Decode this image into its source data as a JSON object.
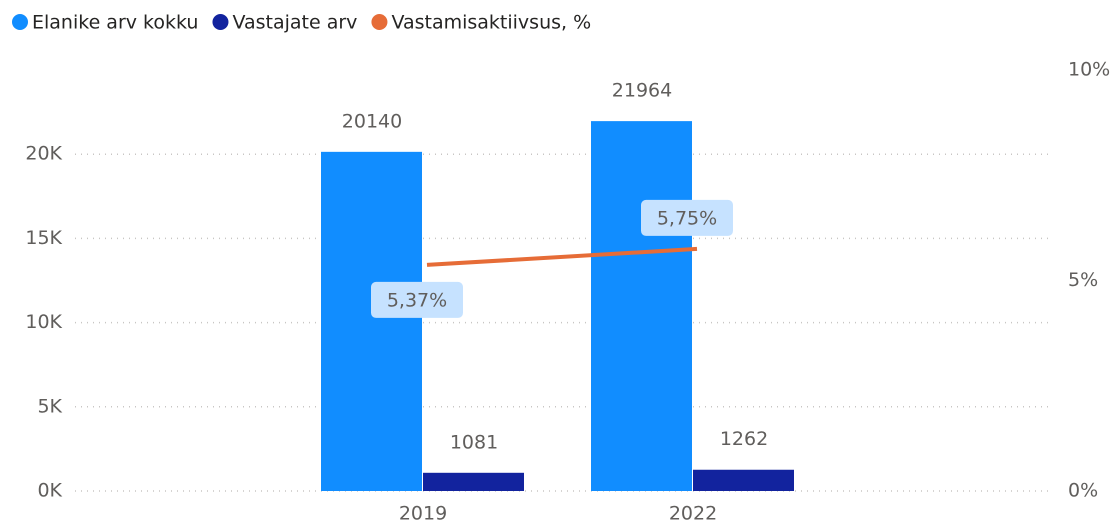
{
  "chart_data": {
    "type": "combo",
    "categories": [
      "2019",
      "2022"
    ],
    "series": [
      {
        "name": "Elanike arv kokku",
        "color": "#118dff",
        "type": "bar",
        "values": [
          20140,
          21964
        ]
      },
      {
        "name": "Vastajate arv",
        "color": "#12239e",
        "type": "bar",
        "values": [
          1081,
          1262
        ]
      },
      {
        "name": "Vastamisaktiivsus, %",
        "color": "#e66c37",
        "type": "line",
        "axis": "y2",
        "values": [
          5.37,
          5.75
        ],
        "value_labels": [
          "5,37%",
          "5,75%"
        ]
      }
    ],
    "ylim": [
      0,
      25000
    ],
    "yticks": [
      {
        "value": 0,
        "label": "0K"
      },
      {
        "value": 5000,
        "label": "5K"
      },
      {
        "value": 10000,
        "label": "10K"
      },
      {
        "value": 15000,
        "label": "15K"
      },
      {
        "value": 20000,
        "label": "20K"
      }
    ],
    "y2lim": [
      0,
      10
    ],
    "y2ticks": [
      {
        "value": 0,
        "label": "0%"
      },
      {
        "value": 5,
        "label": "5%"
      },
      {
        "value": 10,
        "label": "10%"
      }
    ],
    "grid": true,
    "legend": "top-left"
  }
}
